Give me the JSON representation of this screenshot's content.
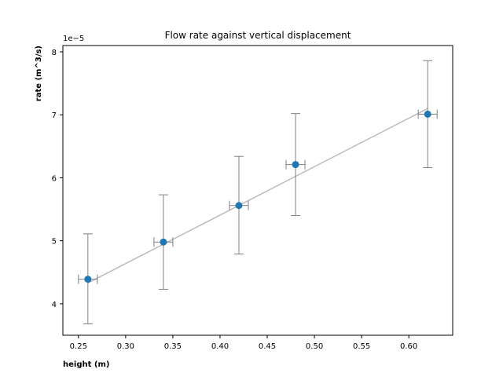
{
  "chart_data": {
    "type": "scatter",
    "title": "Flow rate against vertical displacement",
    "xlabel": "height (m)",
    "ylabel": "rate (m^3/s)",
    "y_offset_label": "1e−5",
    "xlim": [
      0.2335,
      0.6465
    ],
    "ylim": [
      3.5e-05,
      8.1e-05
    ],
    "x_ticks": [
      0.25,
      0.3,
      0.35,
      0.4,
      0.45,
      0.5,
      0.55,
      0.6
    ],
    "x_tick_labels": [
      "0.25",
      "0.30",
      "0.35",
      "0.40",
      "0.45",
      "0.50",
      "0.55",
      "0.60"
    ],
    "y_ticks": [
      4e-05,
      5e-05,
      6e-05,
      7e-05,
      8e-05
    ],
    "y_tick_labels": [
      "4",
      "5",
      "6",
      "7",
      "8"
    ],
    "grid": false,
    "series": [
      {
        "marker": "circle",
        "color": "#1f77b4",
        "x": [
          0.26,
          0.34,
          0.42,
          0.48,
          0.62
        ],
        "y": [
          4.39e-05,
          4.98e-05,
          5.56e-05,
          6.21e-05,
          7.01e-05
        ],
        "x_err": [
          0.01,
          0.01,
          0.01,
          0.01,
          0.01
        ],
        "y_err_lower": [
          7.1e-06,
          7.5e-06,
          7.7e-06,
          8.1e-06,
          8.5e-06
        ],
        "y_err_upper": [
          7.2e-06,
          7.5e-06,
          7.8e-06,
          8.1e-06,
          8.5e-06
        ],
        "error_color": "#808080"
      }
    ],
    "fit_line": {
      "color": "#bbbbbb",
      "x": [
        0.26,
        0.62
      ],
      "y": [
        4.33e-05,
        7.1e-05
      ]
    }
  }
}
